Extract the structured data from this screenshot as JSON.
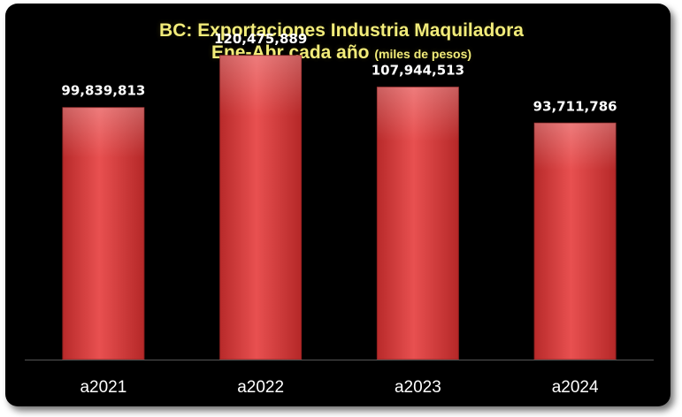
{
  "chart_data": {
    "type": "bar",
    "title": "BC: Exportaciones Industria Maquiladora",
    "subtitle": "Ene-Abr cada año",
    "units_note": "(miles de pesos)",
    "categories": [
      "a2021",
      "a2022",
      "a2023",
      "a2024"
    ],
    "values": [
      99839813,
      120475889,
      107944513,
      93711786
    ],
    "value_labels": [
      "99,839,813",
      "120,475,889",
      "107,944,513",
      "93,711,786"
    ],
    "xlabel": "",
    "ylabel": "",
    "ylim": [
      0,
      140000000
    ],
    "grid": false,
    "legend": "none",
    "colors": {
      "background": "#000000",
      "bar": "#d63a3a",
      "bar_highlight": "#ef6060",
      "title": "#f2ec7a",
      "labels": "#ffffff"
    }
  }
}
